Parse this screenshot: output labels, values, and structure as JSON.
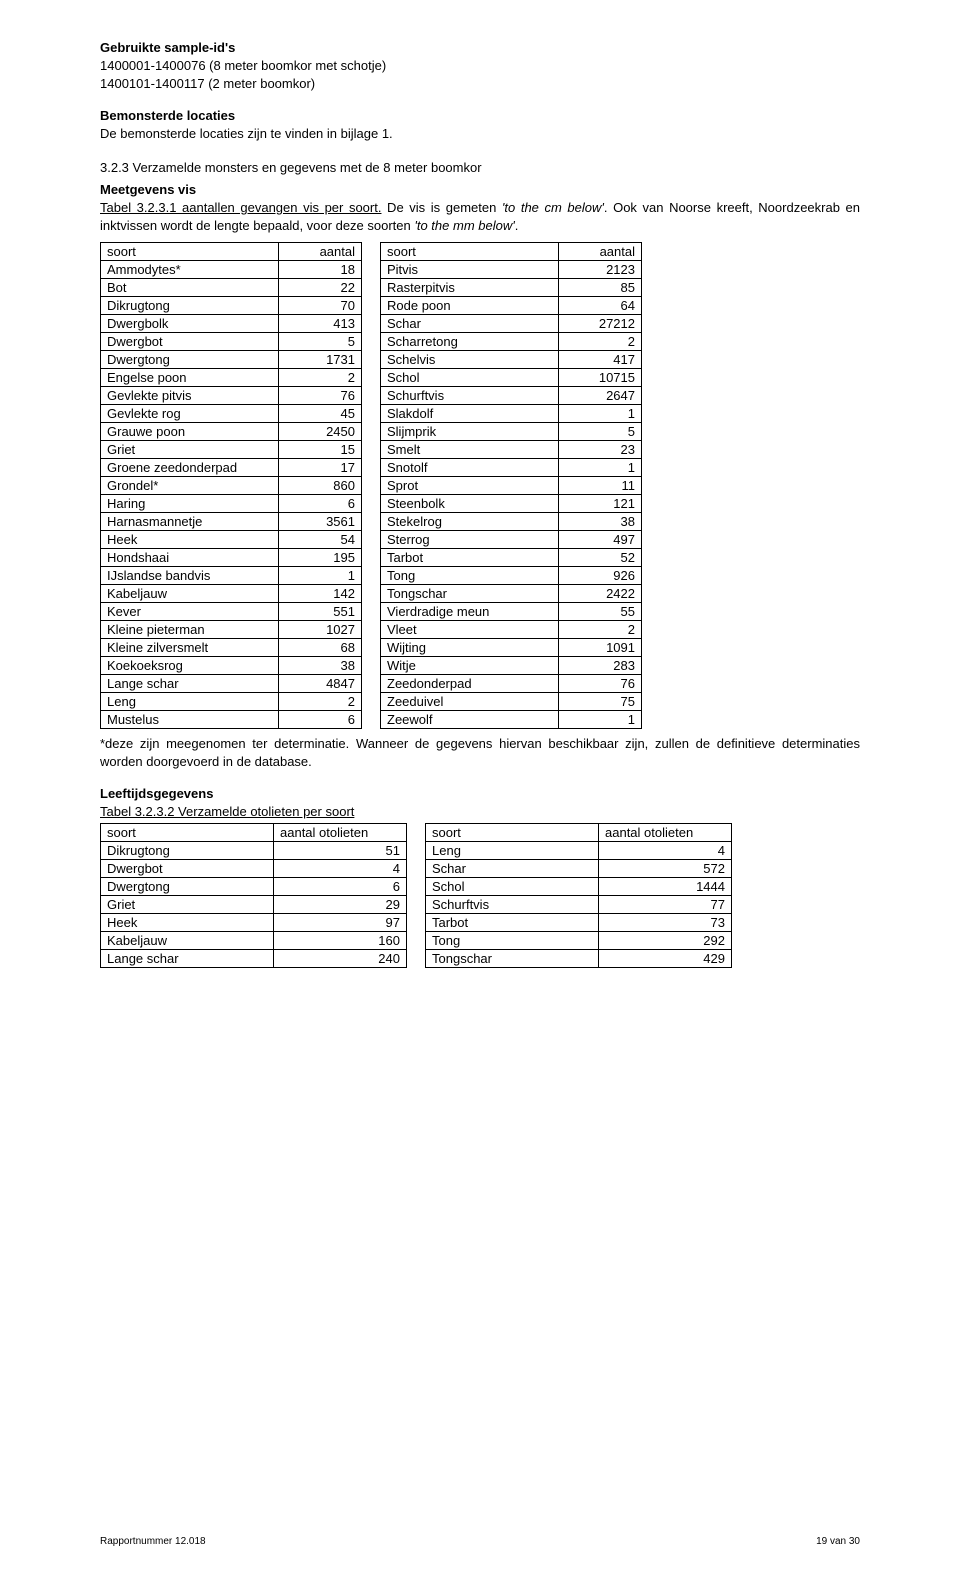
{
  "heading1": "Gebruikte sample-id's",
  "line1": "1400001-1400076 (8 meter boomkor met schotje)",
  "line2": "1400101-1400117 (2 meter boomkor)",
  "heading2": "Bemonsterde locaties",
  "line3": "De bemonsterde locaties zijn te vinden in bijlage 1.",
  "sec323": "3.2.3    Verzamelde monsters en gegevens met de 8 meter boomkor",
  "heading3": "Meetgevens vis",
  "tableLabel1a": "Tabel 3.2.3.1 aantallen gevangen vis per soort.",
  "tableLabel1b": " De vis is gemeten ",
  "tableLabel1c": "'to the cm below'",
  "tableLabel1d": ". Ook van Noorse kreeft, Noordzeekrab en inktvissen wordt de lengte bepaald, voor deze soorten ",
  "tableLabel1e": "'to the mm below'",
  "tableLabel1f": ".",
  "table1": {
    "headers": [
      "soort",
      "aantal",
      "soort",
      "aantal"
    ],
    "left": [
      [
        "Ammodytes*",
        "18"
      ],
      [
        "Bot",
        "22"
      ],
      [
        "Dikrugtong",
        "70"
      ],
      [
        "Dwergbolk",
        "413"
      ],
      [
        "Dwergbot",
        "5"
      ],
      [
        "Dwergtong",
        "1731"
      ],
      [
        "Engelse poon",
        "2"
      ],
      [
        "Gevlekte pitvis",
        "76"
      ],
      [
        "Gevlekte rog",
        "45"
      ],
      [
        "Grauwe poon",
        "2450"
      ],
      [
        "Griet",
        "15"
      ],
      [
        "Groene zeedonderpad",
        "17"
      ],
      [
        "Grondel*",
        "860"
      ],
      [
        "Haring",
        "6"
      ],
      [
        "Harnasmannetje",
        "3561"
      ],
      [
        "Heek",
        "54"
      ],
      [
        "Hondshaai",
        "195"
      ],
      [
        "IJslandse bandvis",
        "1"
      ],
      [
        "Kabeljauw",
        "142"
      ],
      [
        "Kever",
        "551"
      ],
      [
        "Kleine pieterman",
        "1027"
      ],
      [
        "Kleine zilversmelt",
        "68"
      ],
      [
        "Koekoeksrog",
        "38"
      ],
      [
        "Lange schar",
        "4847"
      ],
      [
        "Leng",
        "2"
      ],
      [
        "Mustelus",
        "6"
      ]
    ],
    "right": [
      [
        "Pitvis",
        "2123"
      ],
      [
        "Rasterpitvis",
        "85"
      ],
      [
        "Rode poon",
        "64"
      ],
      [
        "Schar",
        "27212"
      ],
      [
        "Scharretong",
        "2"
      ],
      [
        "Schelvis",
        "417"
      ],
      [
        "Schol",
        "10715"
      ],
      [
        "Schurftvis",
        "2647"
      ],
      [
        "Slakdolf",
        "1"
      ],
      [
        "Slijmprik",
        "5"
      ],
      [
        "Smelt",
        "23"
      ],
      [
        "Snotolf",
        "1"
      ],
      [
        "Sprot",
        "11"
      ],
      [
        "Steenbolk",
        "121"
      ],
      [
        "Stekelrog",
        "38"
      ],
      [
        "Sterrog",
        "497"
      ],
      [
        "Tarbot",
        "52"
      ],
      [
        "Tong",
        "926"
      ],
      [
        "Tongschar",
        "2422"
      ],
      [
        "Vierdradige meun",
        "55"
      ],
      [
        "Vleet",
        "2"
      ],
      [
        "Wijting",
        "1091"
      ],
      [
        "Witje",
        "283"
      ],
      [
        "Zeedonderpad",
        "76"
      ],
      [
        "Zeeduivel",
        "75"
      ],
      [
        "Zeewolf",
        "1"
      ]
    ]
  },
  "footnote1": "*deze zijn meegenomen ter determinatie. Wanneer de gegevens hiervan beschikbaar zijn, zullen de definitieve determinaties worden doorgevoerd in de database.",
  "heading4": "Leeftijdsgegevens",
  "tableLabel2": "Tabel 3.2.3.2 Verzamelde otolieten per soort",
  "table2": {
    "headers": [
      "soort",
      "aantal otolieten",
      "soort",
      "aantal otolieten"
    ],
    "left": [
      [
        "Dikrugtong",
        "51"
      ],
      [
        "Dwergbot",
        "4"
      ],
      [
        "Dwergtong",
        "6"
      ],
      [
        "Griet",
        "29"
      ],
      [
        "Heek",
        "97"
      ],
      [
        "Kabeljauw",
        "160"
      ],
      [
        "Lange schar",
        "240"
      ]
    ],
    "right": [
      [
        "Leng",
        "4"
      ],
      [
        "Schar",
        "572"
      ],
      [
        "Schol",
        "1444"
      ],
      [
        "Schurftvis",
        "77"
      ],
      [
        "Tarbot",
        "73"
      ],
      [
        "Tong",
        "292"
      ],
      [
        "Tongschar",
        "429"
      ]
    ]
  },
  "footer": {
    "left": "Rapportnummer 12.018",
    "right": "19 van 30"
  }
}
